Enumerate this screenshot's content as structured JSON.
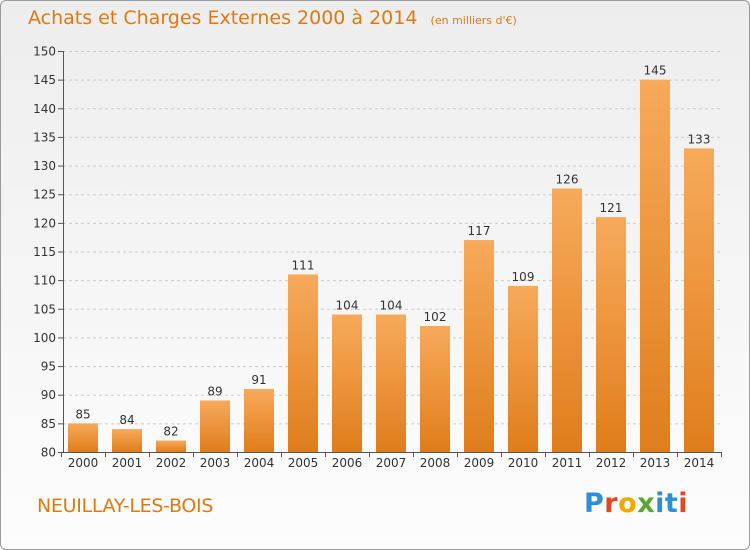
{
  "title": "Achats et Charges Externes 2000 à 2014",
  "subtitle": "(en milliers d'€)",
  "commune": "NEUILLAY-LES-BOIS",
  "logo_text": "Proxiti",
  "colors": {
    "accent": "#e07a10",
    "bar_light": "#f7aa5a",
    "bar_dark": "#e07d1c",
    "grid": "#cccccc",
    "axis": "#555555"
  },
  "chart_data": {
    "type": "bar",
    "categories": [
      "2000",
      "2001",
      "2002",
      "2003",
      "2004",
      "2005",
      "2006",
      "2007",
      "2008",
      "2009",
      "2010",
      "2011",
      "2012",
      "2013",
      "2014"
    ],
    "values": [
      85,
      84,
      82,
      89,
      91,
      111,
      104,
      104,
      102,
      117,
      109,
      126,
      121,
      145,
      133
    ],
    "title": "Achats et Charges Externes 2000 à 2014",
    "xlabel": "",
    "ylabel": "",
    "ylim": [
      80,
      150
    ],
    "yticks": [
      80,
      85,
      90,
      95,
      100,
      105,
      110,
      115,
      120,
      125,
      130,
      135,
      140,
      145,
      150
    ],
    "grid": true,
    "data_labels": true
  }
}
